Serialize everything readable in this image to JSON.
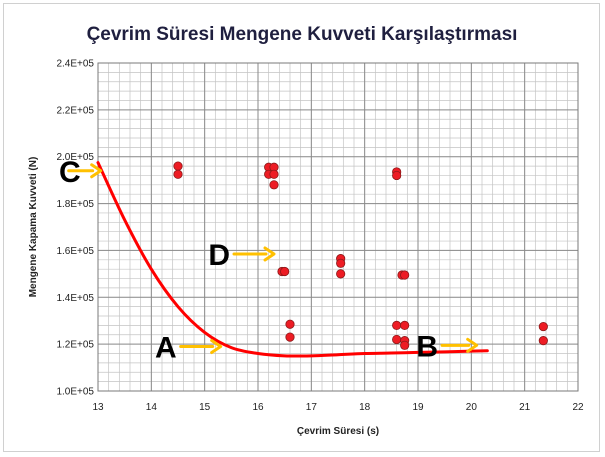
{
  "chart_data": {
    "type": "scatter",
    "title": "Çevrim Süresi  Mengene Kuvveti Karşılaştırması",
    "xlabel": "Çevrim Süresi (s)",
    "ylabel": "Mengene Kapama Kuvveti (N)",
    "xlim": [
      13,
      22
    ],
    "ylim": [
      100000,
      240000
    ],
    "x_ticks": [
      13,
      14,
      15,
      16,
      17,
      18,
      19,
      20,
      21,
      22
    ],
    "x_tick_labels": [
      "13",
      "14",
      "15",
      "16",
      "17",
      "18",
      "19",
      "20",
      "21",
      "22"
    ],
    "y_ticks": [
      100000,
      120000,
      140000,
      160000,
      180000,
      200000,
      220000,
      240000
    ],
    "y_tick_labels": [
      "1.0E+05",
      "1.2E+05",
      "1.4E+05",
      "1.6E+05",
      "1.8E+05",
      "2.0E+05",
      "2.2E+05",
      "2.4E+05"
    ],
    "grid": true,
    "legend": "none",
    "series": [
      {
        "points": [
          [
            14.5,
            196000
          ],
          [
            14.5,
            192500
          ],
          [
            16.2,
            195500
          ],
          [
            16.3,
            195500
          ],
          [
            16.2,
            192500
          ],
          [
            16.3,
            192500
          ],
          [
            16.3,
            188000
          ],
          [
            16.45,
            151000
          ],
          [
            16.5,
            151000
          ],
          [
            16.6,
            128500
          ],
          [
            16.6,
            123000
          ],
          [
            17.55,
            156500
          ],
          [
            17.55,
            154500
          ],
          [
            17.55,
            150000
          ],
          [
            18.6,
            193500
          ],
          [
            18.6,
            192000
          ],
          [
            18.7,
            149500
          ],
          [
            18.75,
            149500
          ],
          [
            18.6,
            128000
          ],
          [
            18.75,
            128000
          ],
          [
            18.6,
            122000
          ],
          [
            18.75,
            121500
          ],
          [
            18.75,
            119500
          ],
          [
            21.35,
            127500
          ],
          [
            21.35,
            121500
          ]
        ],
        "color": "#ed1c24"
      },
      {
        "type": "line",
        "x": [
          13.0,
          13.5,
          14.0,
          14.5,
          15.0,
          15.5,
          16.0,
          16.5,
          17.0,
          17.5,
          18.0,
          18.5,
          19.0,
          19.5,
          20.0,
          20.3
        ],
        "y": [
          197500,
          173000,
          152000,
          136000,
          125000,
          118500,
          116000,
          115000,
          115000,
          115500,
          116000,
          116200,
          116500,
          116700,
          117000,
          117200
        ],
        "color": "#ff0000"
      }
    ],
    "annotations": [
      {
        "label": "C",
        "arrow_x_start": 13.05,
        "arrow_x_end": 12.75,
        "y": 194000
      },
      {
        "label": "D",
        "arrow_x_start": 15.55,
        "arrow_x_end": 16.3,
        "y": 158500
      },
      {
        "label": "A",
        "arrow_x_start": 14.55,
        "arrow_x_end": 15.3,
        "y": 119000
      },
      {
        "label": "B",
        "arrow_x_start": 19.45,
        "arrow_x_end": 20.1,
        "y": 119500
      }
    ],
    "annotation_arrow_color": "#ffc000"
  }
}
